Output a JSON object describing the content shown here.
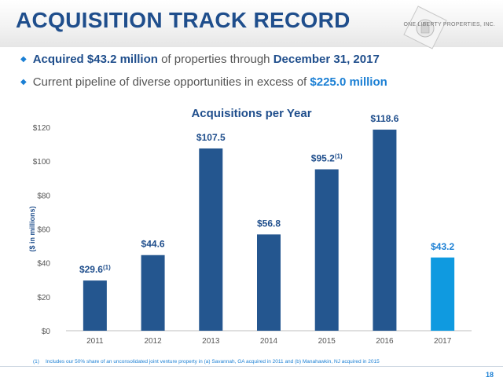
{
  "header": {
    "title": "ACQUISITION TRACK RECORD",
    "logo_text": "ONE LIBERTY PROPERTIES, INC."
  },
  "bullets": [
    {
      "pre": "",
      "hl1": "Acquired $43.2 million",
      "mid": " of properties through ",
      "hl2": "December 31, 2017",
      "post": ""
    },
    {
      "pre": "",
      "hl1": "",
      "mid": "Current pipeline of diverse opportunities in excess of ",
      "hl2": "$225.0 million",
      "post": ""
    }
  ],
  "colors": {
    "dark_bar": "#24568f",
    "highlight_bar": "#0f9ae0",
    "title_blue": "#1f4e8c",
    "accent_blue": "#1a7fd4"
  },
  "chart_data": {
    "type": "bar",
    "title": "Acquisitions per Year",
    "ylabel": "($ in millions)",
    "xlabel": "",
    "categories": [
      "2011",
      "2012",
      "2013",
      "2014",
      "2015",
      "2016",
      "2017"
    ],
    "values": [
      29.6,
      44.6,
      107.5,
      56.8,
      95.2,
      118.6,
      43.2
    ],
    "data_labels": [
      "$29.6",
      "$44.6",
      "$107.5",
      "$56.8",
      "$95.2",
      "$118.6",
      "$43.2"
    ],
    "label_footnote": [
      "(1)",
      "",
      "",
      "",
      "(1)",
      "",
      ""
    ],
    "highlight_index": 6,
    "ylim": [
      0,
      120
    ],
    "yticks": [
      0,
      20,
      40,
      60,
      80,
      100,
      120
    ],
    "ytick_labels": [
      "$0",
      "$20",
      "$40",
      "$60",
      "$80",
      "$100",
      "$120"
    ],
    "grid": false,
    "legend": "none"
  },
  "footnote": {
    "mark": "(1)",
    "text": "Includes our 50% share of an unconsolidated joint venture property in (a) Savannah, GA acquired in 2011 and (b) Manahawkin, NJ acquired in 2015"
  },
  "page_number": "18"
}
